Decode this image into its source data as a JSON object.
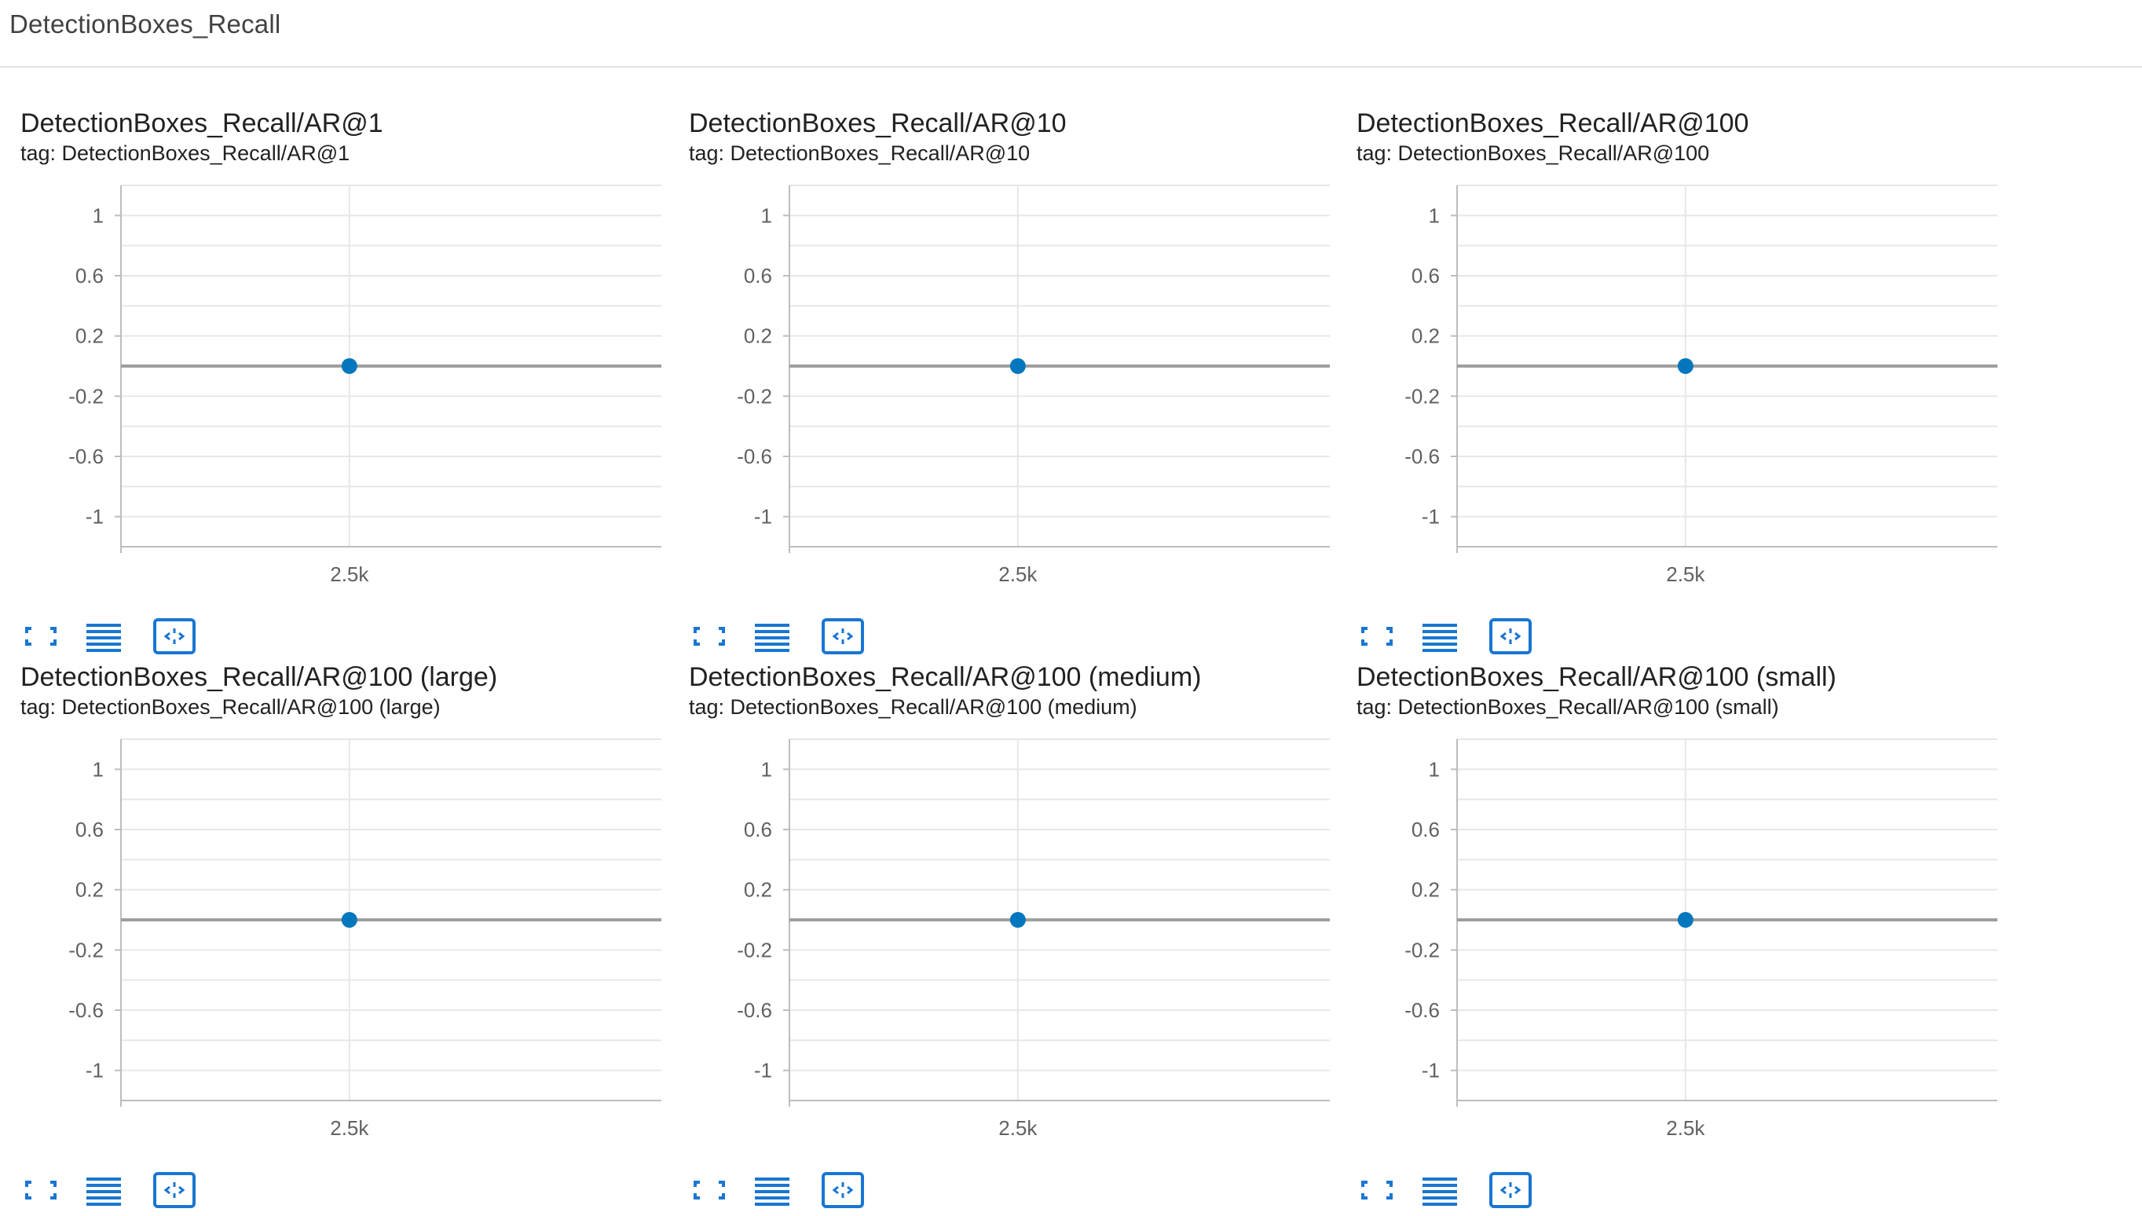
{
  "section": {
    "title": "DetectionBoxes_Recall"
  },
  "accent_color": "#1976d2",
  "point_color": "#0277bd",
  "icons": [
    "fullscreen-icon",
    "toggle-y-log-icon",
    "fit-domain-icon"
  ],
  "cards": [
    {
      "title": "DetectionBoxes_Recall/AR@1",
      "tag": "tag: DetectionBoxes_Recall/AR@1"
    },
    {
      "title": "DetectionBoxes_Recall/AR@10",
      "tag": "tag: DetectionBoxes_Recall/AR@10"
    },
    {
      "title": "DetectionBoxes_Recall/AR@100",
      "tag": "tag: DetectionBoxes_Recall/AR@100"
    },
    {
      "title": "DetectionBoxes_Recall/AR@100 (large)",
      "tag": "tag: DetectionBoxes_Recall/AR@100 (large)"
    },
    {
      "title": "DetectionBoxes_Recall/AR@100 (medium)",
      "tag": "tag: DetectionBoxes_Recall/AR@100 (medium)"
    },
    {
      "title": "DetectionBoxes_Recall/AR@100 (small)",
      "tag": "tag: DetectionBoxes_Recall/AR@100 (small)"
    }
  ],
  "chart_data": [
    {
      "type": "scatter",
      "title": "DetectionBoxes_Recall/AR@1",
      "x": [
        2500
      ],
      "y": [
        0
      ],
      "ylim": [
        -1.2,
        1.2
      ],
      "yticks": [
        1,
        0.6,
        0.2,
        -0.2,
        -0.6,
        -1
      ],
      "xticks": [
        "2.5k"
      ],
      "grid": true
    },
    {
      "type": "scatter",
      "title": "DetectionBoxes_Recall/AR@10",
      "x": [
        2500
      ],
      "y": [
        0
      ],
      "ylim": [
        -1.2,
        1.2
      ],
      "yticks": [
        1,
        0.6,
        0.2,
        -0.2,
        -0.6,
        -1
      ],
      "xticks": [
        "2.5k"
      ],
      "grid": true
    },
    {
      "type": "scatter",
      "title": "DetectionBoxes_Recall/AR@100",
      "x": [
        2500
      ],
      "y": [
        0
      ],
      "ylim": [
        -1.2,
        1.2
      ],
      "yticks": [
        1,
        0.6,
        0.2,
        -0.2,
        -0.6,
        -1
      ],
      "xticks": [
        "2.5k"
      ],
      "grid": true
    },
    {
      "type": "scatter",
      "title": "DetectionBoxes_Recall/AR@100 (large)",
      "x": [
        2500
      ],
      "y": [
        0
      ],
      "ylim": [
        -1.2,
        1.2
      ],
      "yticks": [
        1,
        0.6,
        0.2,
        -0.2,
        -0.6,
        -1
      ],
      "xticks": [
        "2.5k"
      ],
      "grid": true
    },
    {
      "type": "scatter",
      "title": "DetectionBoxes_Recall/AR@100 (medium)",
      "x": [
        2500
      ],
      "y": [
        0
      ],
      "ylim": [
        -1.2,
        1.2
      ],
      "yticks": [
        1,
        0.6,
        0.2,
        -0.2,
        -0.6,
        -1
      ],
      "xticks": [
        "2.5k"
      ],
      "grid": true
    },
    {
      "type": "scatter",
      "title": "DetectionBoxes_Recall/AR@100 (small)",
      "x": [
        2500
      ],
      "y": [
        0
      ],
      "ylim": [
        -1.2,
        1.2
      ],
      "yticks": [
        1,
        0.6,
        0.2,
        -0.2,
        -0.6,
        -1
      ],
      "xticks": [
        "2.5k"
      ],
      "grid": true
    }
  ]
}
